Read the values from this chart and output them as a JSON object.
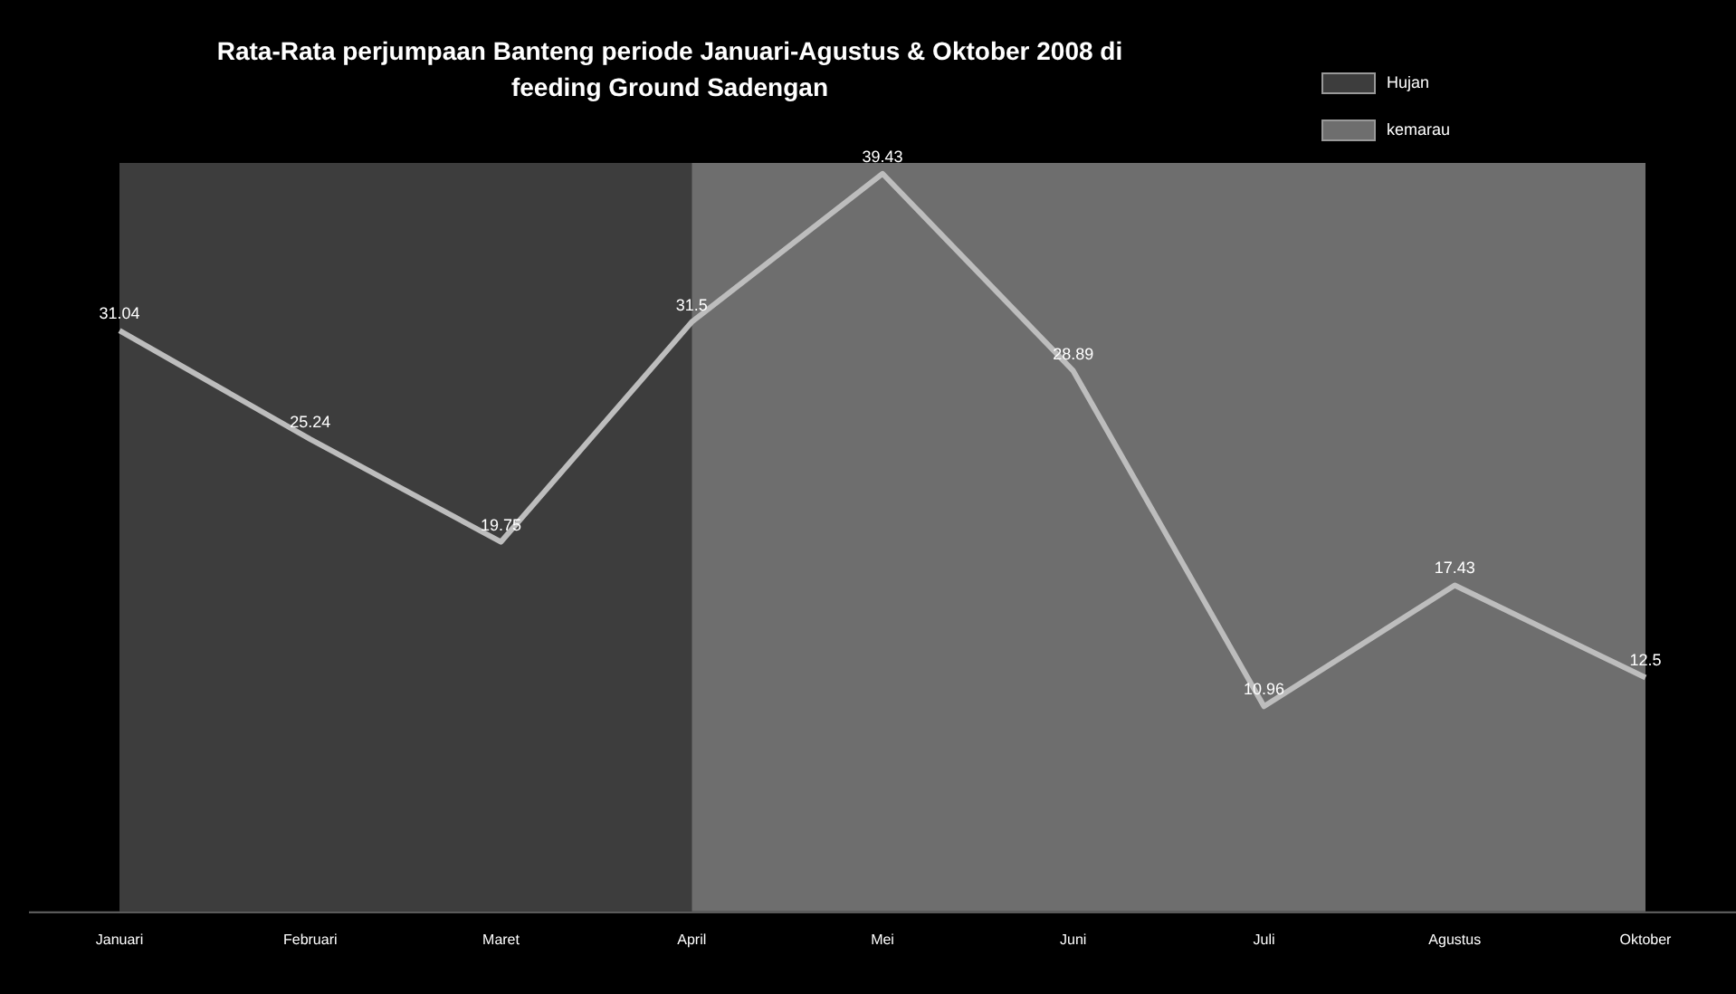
{
  "chart_data": {
    "type": "line",
    "title": "Rata-Rata perjumpaan Banteng periode Januari-Agustus & Oktober 2008 di feeding Ground Sadengan",
    "categories": [
      "Januari",
      "Februari",
      "Maret",
      "April",
      "Mei",
      "Juni",
      "Juli",
      "Agustus",
      "Oktober"
    ],
    "series": [
      {
        "color": "#bdbdbd",
        "values": [
          31.04,
          25.24,
          19.75,
          31.5,
          39.43,
          28.89,
          10.96,
          17.43,
          12.5
        ]
      }
    ],
    "data_labels": true,
    "bands": [
      {
        "axis": "x",
        "from": "Januari",
        "to": "April",
        "label": "Hujan",
        "color": "#3d3d3d"
      },
      {
        "axis": "x",
        "from": "April",
        "to": "Oktober",
        "label": "kemarau",
        "color": "#6e6e6e"
      }
    ],
    "legend": "top right",
    "marker": "none"
  }
}
